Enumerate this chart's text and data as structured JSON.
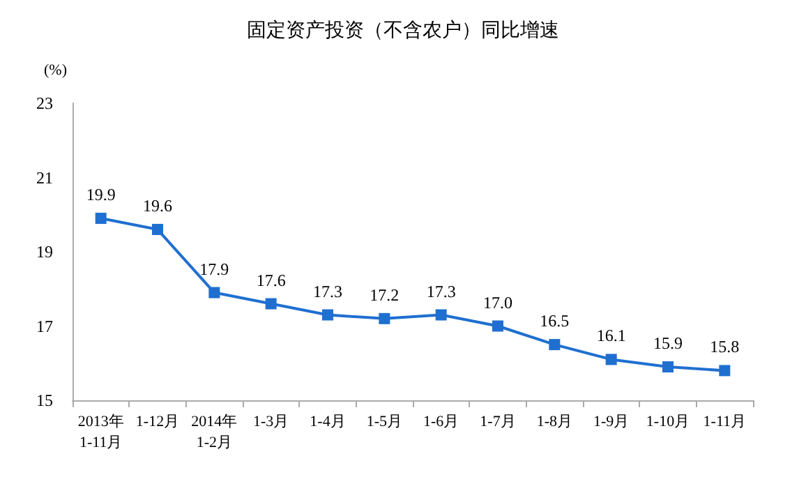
{
  "chart_data": {
    "type": "line",
    "title": "固定资产投资（不含农户）同比增速",
    "ylabel": "(%)",
    "categories": [
      "2013年\n1-11月",
      "1-12月",
      "2014年\n1-2月",
      "1-3月",
      "1-4月",
      "1-5月",
      "1-6月",
      "1-7月",
      "1-8月",
      "1-9月",
      "1-10月",
      "1-11月"
    ],
    "series": [
      {
        "color": "#1f6fd0",
        "values": [
          19.9,
          19.6,
          17.9,
          17.6,
          17.3,
          17.2,
          17.3,
          17.0,
          16.5,
          16.1,
          15.9,
          15.8
        ],
        "value_labels": [
          "19.9",
          "19.6",
          "17.9",
          "17.6",
          "17.3",
          "17.2",
          "17.3",
          "17.0",
          "16.5",
          "16.1",
          "15.9",
          "15.8"
        ]
      }
    ],
    "ylim": [
      15,
      23
    ],
    "yticks": [
      15,
      17,
      19,
      21,
      23
    ],
    "grid": false,
    "marker": "square",
    "line_style": "solid"
  }
}
